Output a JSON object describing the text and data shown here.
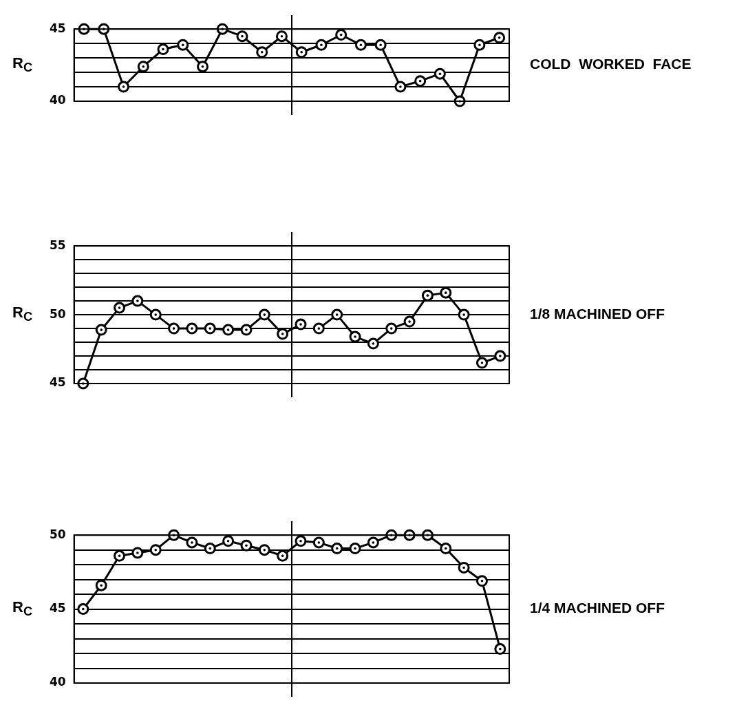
{
  "chart_data": [
    {
      "type": "line",
      "annotations": [
        "COLD  WORKED  FACE"
      ],
      "ylabel": "R$_{C}$",
      "categories": [
        null,
        null,
        null,
        null,
        null,
        null,
        null,
        null,
        null,
        null,
        null,
        null,
        null,
        null,
        null,
        null,
        null,
        null,
        null,
        null,
        null,
        null
      ],
      "series": [
        {
          "color": "#000000",
          "values": [
            45,
            45,
            41,
            42.4,
            43.6,
            43.9,
            42.4,
            45,
            44.5,
            43.4,
            44.5,
            43.4,
            43.9,
            44.6,
            43.9,
            43.9,
            41,
            41.4,
            41.9,
            40,
            43.9,
            44.4
          ]
        }
      ],
      "ylim": [
        40,
        45
      ],
      "yticks": [
        40,
        {
          "value": 41,
          "label": null
        },
        {
          "value": 42,
          "label": null
        },
        {
          "value": 43,
          "label": null
        },
        {
          "value": 44,
          "label": null
        },
        45
      ],
      "grid": "y",
      "marker": "circle",
      "tick_labels": "y"
    },
    {
      "type": "line",
      "annotations": [
        "1/8 MACHINED OFF"
      ],
      "ylabel": "R$_{C}$",
      "categories": [
        null,
        null,
        null,
        null,
        null,
        null,
        null,
        null,
        null,
        null,
        null,
        null,
        null,
        null,
        null,
        null,
        null,
        null,
        null,
        null,
        null,
        null,
        null,
        null
      ],
      "series": [
        {
          "color": "#000000",
          "values": [
            45,
            48.9,
            50.5,
            51,
            50,
            49,
            49,
            49,
            48.9,
            48.9,
            50,
            48.6,
            49.3,
            null,
            null,
            null,
            null,
            null,
            null,
            null,
            null,
            null,
            null,
            null
          ]
        },
        {
          "color": "#000000",
          "values": [
            null,
            null,
            null,
            null,
            null,
            null,
            null,
            null,
            null,
            null,
            null,
            null,
            null,
            49,
            50,
            48.4,
            47.9,
            49,
            49.5,
            51.4,
            51.6,
            50,
            46.5,
            47
          ]
        }
      ],
      "ylim": [
        45,
        55
      ],
      "yticks": [
        45,
        {
          "value": 46,
          "label": null
        },
        {
          "value": 47,
          "label": null
        },
        {
          "value": 48,
          "label": null
        },
        {
          "value": 49,
          "label": null
        },
        50,
        {
          "value": 51,
          "label": null
        },
        {
          "value": 52,
          "label": null
        },
        {
          "value": 53,
          "label": null
        },
        {
          "value": 54,
          "label": null
        },
        55
      ],
      "grid": "y",
      "marker": "circle",
      "tick_labels": "y"
    },
    {
      "type": "line",
      "annotations": [
        "1/4 MACHINED OFF"
      ],
      "ylabel": "R$_{C}$",
      "categories": [
        null,
        null,
        null,
        null,
        null,
        null,
        null,
        null,
        null,
        null,
        null,
        null,
        null,
        null,
        null,
        null,
        null,
        null,
        null,
        null,
        null,
        null,
        null,
        null
      ],
      "series": [
        {
          "color": "#000000",
          "values": [
            45,
            46.6,
            48.6,
            48.8,
            49,
            50,
            49.5,
            49.1,
            49.6,
            49.3,
            49,
            48.6,
            49.6,
            49.5,
            49.1,
            49.1,
            49.5,
            50,
            50,
            50,
            49.1,
            47.8,
            46.9,
            42.3
          ]
        }
      ],
      "ylim": [
        40,
        50
      ],
      "yticks": [
        40,
        {
          "value": 41,
          "label": null
        },
        {
          "value": 42,
          "label": null
        },
        {
          "value": 43,
          "label": null
        },
        {
          "value": 44,
          "label": null
        },
        45,
        {
          "value": 46,
          "label": null
        },
        {
          "value": 47,
          "label": null
        },
        {
          "value": 48,
          "label": null
        },
        {
          "value": 49,
          "label": null
        },
        50
      ],
      "grid": "y",
      "marker": "circle",
      "tick_labels": "y"
    }
  ]
}
